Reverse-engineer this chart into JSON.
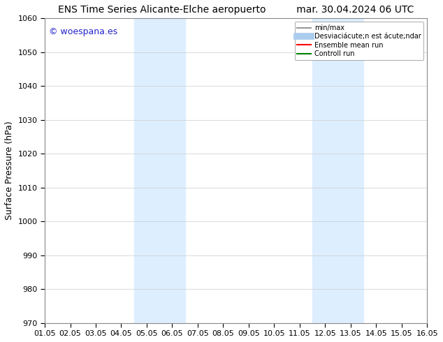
{
  "title_left": "ENS Time Series Alicante-Elche aeropuerto",
  "title_right": "mar. 30.04.2024 06 UTC",
  "ylabel": "Surface Pressure (hPa)",
  "ylim": [
    970,
    1060
  ],
  "yticks": [
    970,
    980,
    990,
    1000,
    1010,
    1020,
    1030,
    1040,
    1050,
    1060
  ],
  "xlim_start": 0.0,
  "xlim_end": 15.0,
  "xtick_labels": [
    "01.05",
    "02.05",
    "03.05",
    "04.05",
    "05.05",
    "06.05",
    "07.05",
    "08.05",
    "09.05",
    "10.05",
    "11.05",
    "12.05",
    "13.05",
    "14.05",
    "15.05",
    "16.05"
  ],
  "xtick_positions": [
    0.0,
    1.0,
    2.0,
    3.0,
    4.0,
    5.0,
    6.0,
    7.0,
    8.0,
    9.0,
    10.0,
    11.0,
    12.0,
    13.0,
    14.0,
    15.0
  ],
  "shaded_regions": [
    {
      "xmin": 3.5,
      "xmax": 5.5,
      "color": "#ddeeff"
    },
    {
      "xmin": 10.5,
      "xmax": 12.5,
      "color": "#ddeeff"
    }
  ],
  "watermark_text": "© woespana.es",
  "watermark_color": "#2222cc",
  "legend_entries": [
    {
      "label": "min/max",
      "color": "#999999",
      "lw": 1.5,
      "style": "solid"
    },
    {
      "label": "Desviaciácute;n est ácute;ndar",
      "color": "#aaccee",
      "lw": 7,
      "style": "solid"
    },
    {
      "label": "Ensemble mean run",
      "color": "red",
      "lw": 1.5,
      "style": "solid"
    },
    {
      "label": "Controll run",
      "color": "green",
      "lw": 1.5,
      "style": "solid"
    }
  ],
  "bg_color": "#ffffff",
  "plot_bg_color": "#ffffff",
  "border_color": "#000000",
  "grid_color": "#cccccc",
  "title_fontsize": 10,
  "tick_fontsize": 8,
  "ylabel_fontsize": 9
}
